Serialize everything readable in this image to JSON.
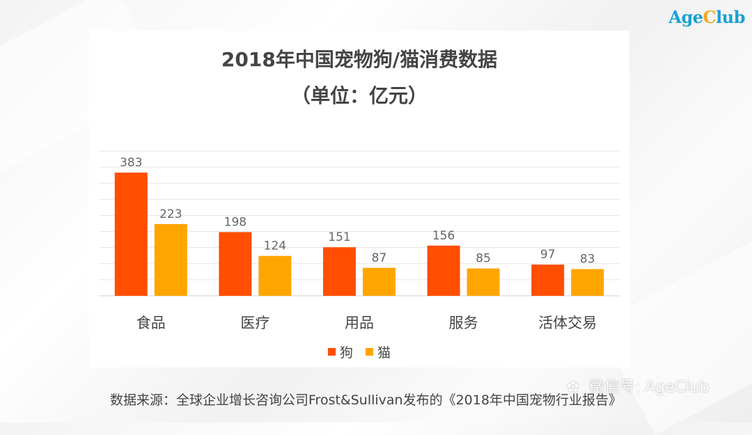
{
  "brand": {
    "logo_prefix": "Age",
    "logo_c": "C",
    "logo_suffix": "lub"
  },
  "chart_data": {
    "type": "bar",
    "title": "2018年中国宠物狗/猫消费数据",
    "subtitle": "（单位：亿元）",
    "categories": [
      "食品",
      "医疗",
      "用品",
      "服务",
      "活体交易"
    ],
    "series": [
      {
        "name": "狗",
        "values": [
          383,
          198,
          151,
          156,
          97
        ],
        "color": "#ff4e00"
      },
      {
        "name": "猫",
        "values": [
          223,
          124,
          87,
          85,
          83
        ],
        "color": "#ffa500"
      }
    ],
    "ylim": [
      0,
      450
    ],
    "grid": true,
    "legend": "bottom"
  },
  "source_text": "数据来源：全球企业增长咨询公司Frost&Sullivan发布的《2018年中国宠物行业报告》",
  "watermark_text": "微信号: AgeClub"
}
